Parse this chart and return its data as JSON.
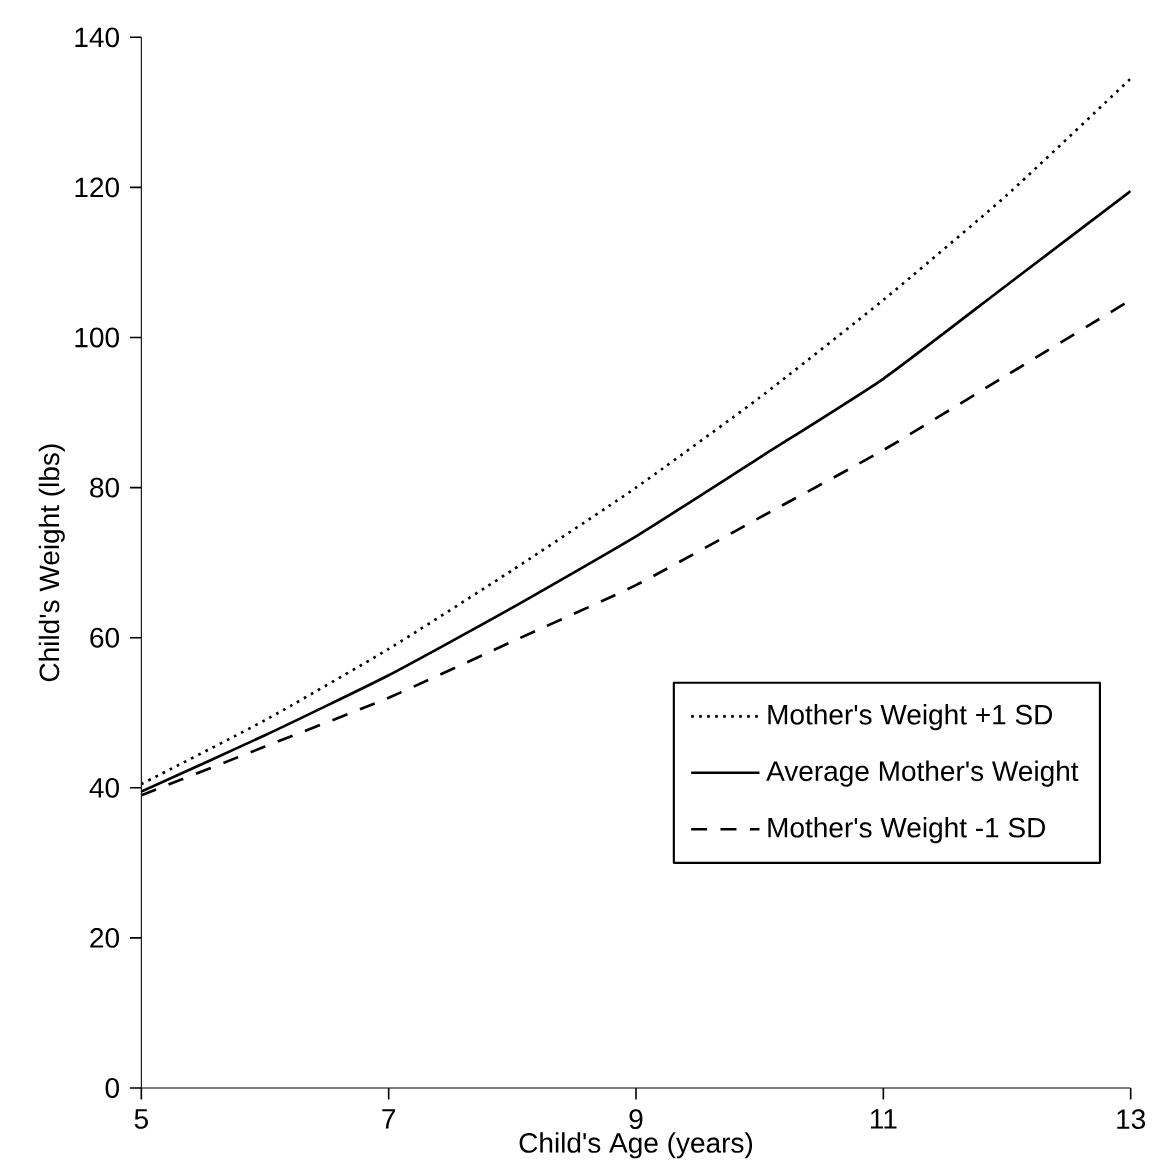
{
  "chart_data": {
    "type": "line",
    "xlabel": "Child's Age (years)",
    "ylabel": "Child's Weight (lbs)",
    "x": [
      5,
      6,
      7,
      8,
      9,
      10,
      11,
      12,
      13
    ],
    "series": [
      {
        "name": "Mother's Weight +1 SD",
        "color": "#000000",
        "line_style": "dotted",
        "values": [
          40.5,
          49,
          58.5,
          69,
          80,
          92,
          105,
          119,
          134.5
        ]
      },
      {
        "name": "Average Mother's Weight",
        "color": "#000000",
        "line_style": "solid",
        "values": [
          39.5,
          47,
          55,
          64,
          73.5,
          84,
          94.5,
          107,
          119.5
        ]
      },
      {
        "name": "Mother's Weight -1 SD",
        "color": "#000000",
        "line_style": "dashed",
        "values": [
          39,
          45.5,
          52,
          59.5,
          67,
          76,
          85,
          95,
          105
        ]
      }
    ],
    "xlim": [
      5,
      13
    ],
    "xticks": [
      5,
      7,
      9,
      11,
      13
    ],
    "ylim": [
      0,
      140
    ],
    "yticks": [
      0,
      20,
      40,
      60,
      80,
      100,
      120,
      140
    ],
    "grid": false,
    "legend": "right",
    "marker": "none"
  }
}
